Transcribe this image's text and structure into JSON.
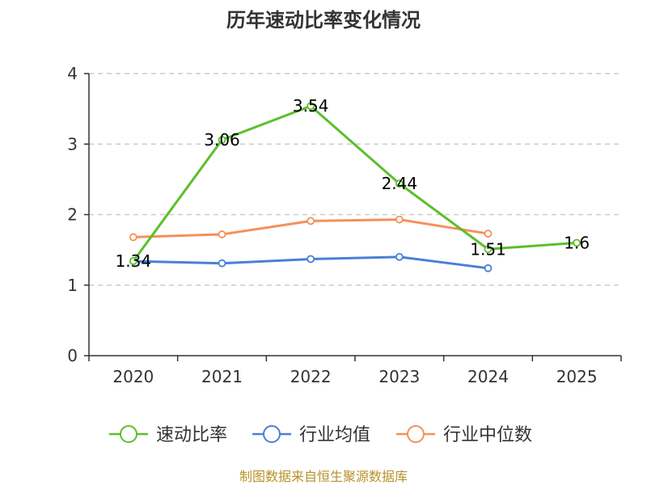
{
  "chart_data": {
    "type": "line",
    "title": "历年速动比率变化情况",
    "categories": [
      "2020",
      "2021",
      "2022",
      "2023",
      "2024",
      "2025"
    ],
    "ylim": [
      0,
      4
    ],
    "yticks": [
      "0",
      "1",
      "2",
      "3",
      "4"
    ],
    "grid": true,
    "legend_position": "bottom",
    "series": [
      {
        "name": "速动比率",
        "color": "#5cbf2a",
        "values": [
          1.34,
          3.06,
          3.54,
          2.44,
          1.51,
          1.6
        ],
        "labels": [
          "1.34",
          "3.06",
          "3.54",
          "2.44",
          "1.51",
          "1.6"
        ]
      },
      {
        "name": "行业均值",
        "color": "#4a7fd8",
        "values": [
          1.34,
          1.31,
          1.37,
          1.4,
          1.24,
          null
        ]
      },
      {
        "name": "行业中位数",
        "color": "#f5905a",
        "values": [
          1.68,
          1.72,
          1.91,
          1.93,
          1.73,
          null
        ]
      }
    ]
  },
  "source": "制图数据来自恒生聚源数据库"
}
